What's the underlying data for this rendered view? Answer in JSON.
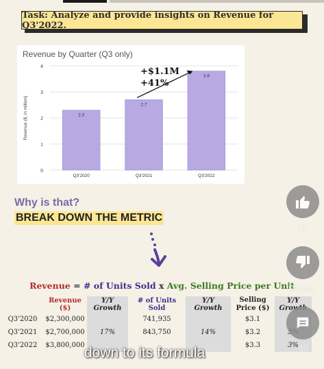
{
  "task": {
    "text": "Task: Analyze and provide insights on Revenue for Q3'2022."
  },
  "chart_data": {
    "type": "bar",
    "title": "Revenue by Quarter (Q3 only)",
    "ylabel": "Revenue ($, in million)",
    "xlabel": "",
    "categories": [
      "Q3'2020",
      "Q3'2021",
      "Q3'2022"
    ],
    "values": [
      2.3,
      2.7,
      3.8
    ],
    "value_labels": [
      "2.3",
      "2.7",
      "3.8"
    ],
    "yticks": [
      "0",
      "1",
      "2",
      "3",
      "4"
    ],
    "ylim": [
      0,
      4
    ],
    "grid": true,
    "bar_color": "#b8a9e3",
    "annotation": {
      "line1": "+$1.1M",
      "line2": "+41%"
    }
  },
  "why": "Why is that?",
  "break_down": "BREAK DOWN THE METRIC",
  "formula": {
    "revenue": "Revenue",
    "eq": "=",
    "units": "# of Units Sold",
    "times": "x",
    "price": "Avg. Selling Price per Unit"
  },
  "table": {
    "headers": [
      "",
      "Revenue ($)",
      "Y/Y Growth",
      "# of Units Sold",
      "Y/Y Growth",
      "Selling Price ($)",
      "Y/Y Growth"
    ],
    "rows": [
      [
        "Q3'2020",
        "$2,300,000",
        "",
        "741,935",
        "",
        "$3.1",
        ""
      ],
      [
        "Q3'2021",
        "$2,700,000",
        "17%",
        "843,750",
        "14%",
        "$3.2",
        "3%"
      ],
      [
        "Q3'2022",
        "$3,800,000",
        "",
        "",
        "",
        "$3.3",
        "3%"
      ]
    ]
  },
  "side": {
    "likes": "2K",
    "dislike": "Dislike",
    "comments": "10"
  },
  "caption": "down to its formula",
  "colors": {
    "highlight": "#fbe694",
    "bar": "#b8a9e3",
    "purple_text": "#7b6aa6"
  }
}
